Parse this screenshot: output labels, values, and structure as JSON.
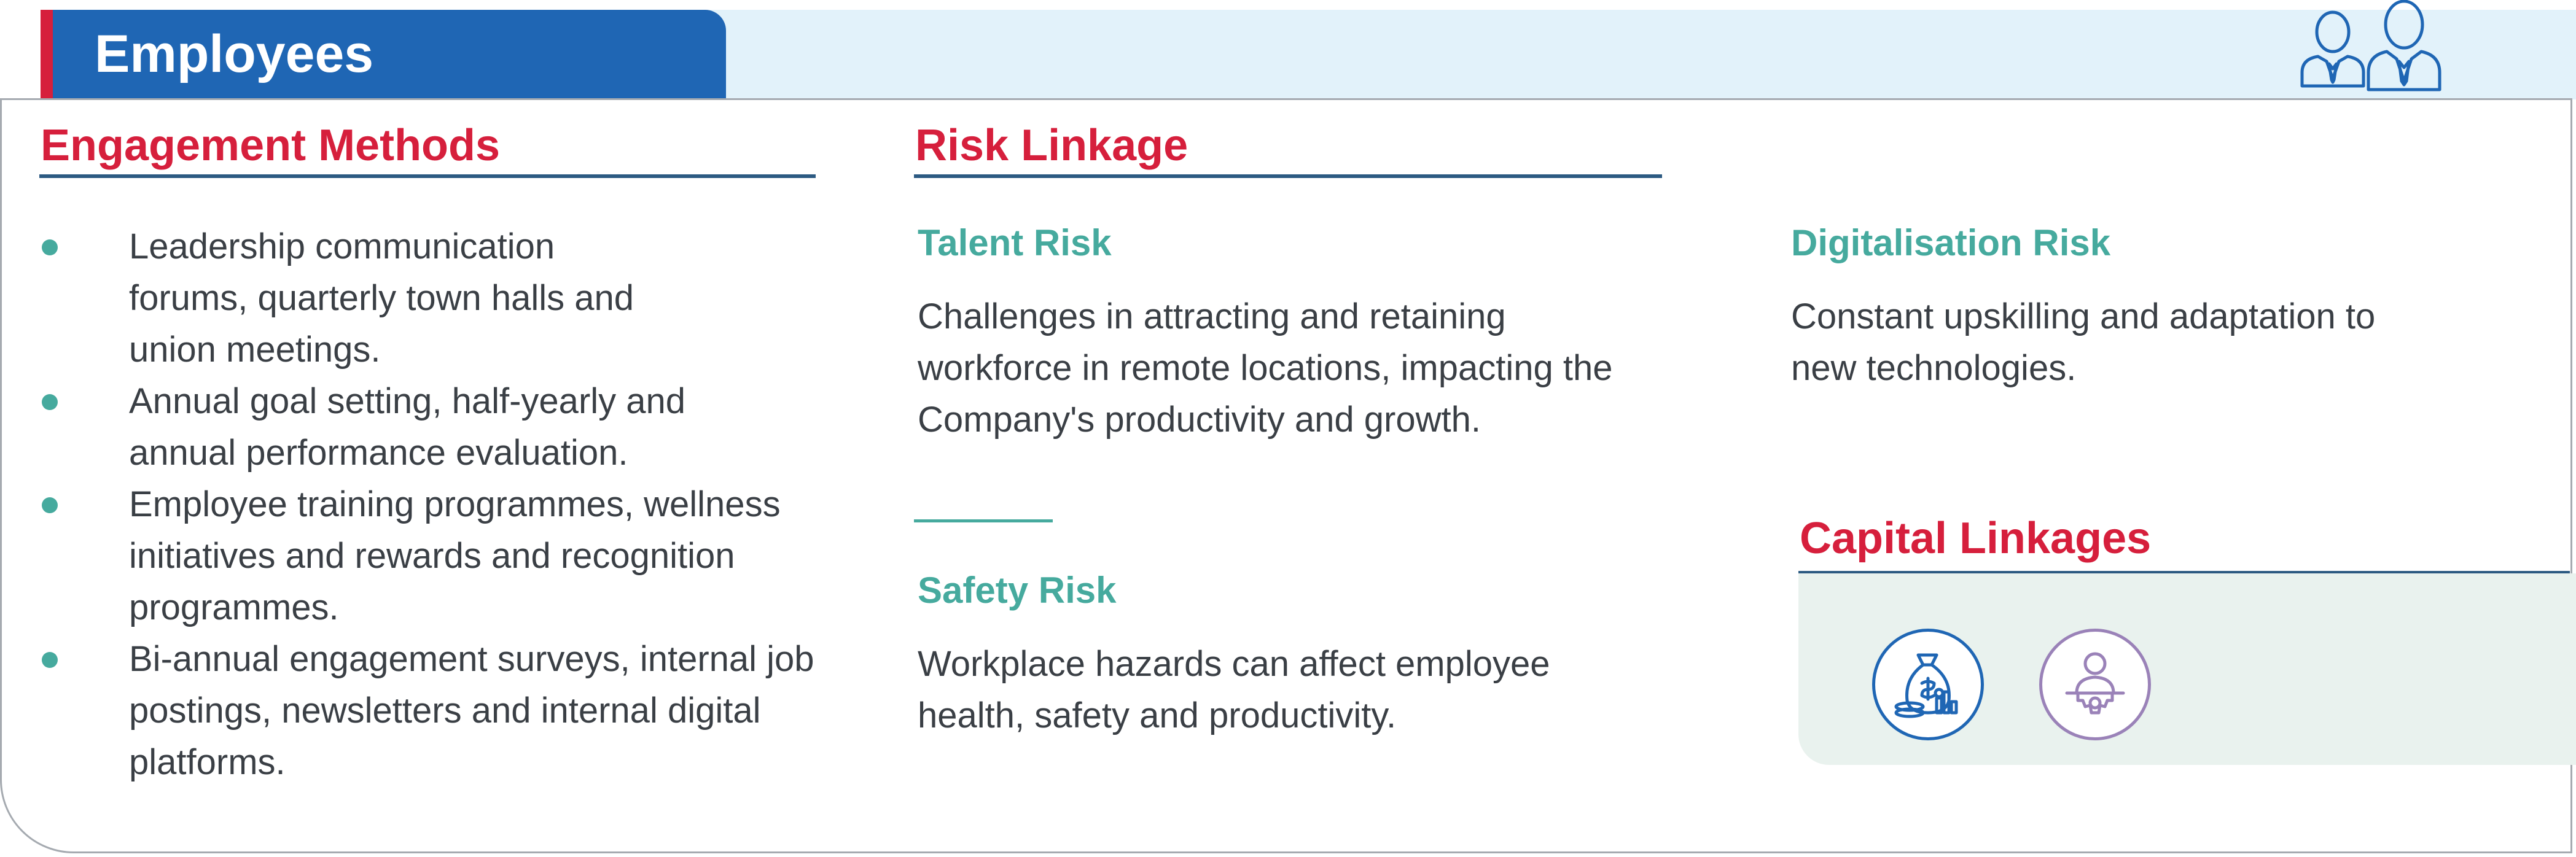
{
  "header": {
    "title": "Employees",
    "icon": "people-icon"
  },
  "engagement": {
    "heading": "Engagement Methods",
    "items": [
      "Leadership communication forums, quarterly town halls and union meetings.",
      "Annual goal setting, half-yearly and annual performance evaluation.",
      "Employee training programmes, wellness initiatives and rewards and recognition programmes.",
      "Bi-annual engagement surveys, internal job postings, newsletters and internal digital platforms."
    ]
  },
  "risk": {
    "heading": "Risk Linkage",
    "talent": {
      "title": "Talent Risk",
      "text": "Challenges in attracting and retaining workforce in remote locations, impacting the Company's productivity and growth."
    },
    "safety": {
      "title": "Safety Risk",
      "text": "Workplace hazards can affect employee health, safety and productivity."
    },
    "digital": {
      "title": "Digitalisation Risk",
      "text": "Constant upskilling and adaptation to new technologies."
    }
  },
  "capital": {
    "heading": "Capital Linkages",
    "icons": [
      "financial-capital-icon",
      "human-capital-icon"
    ]
  },
  "colors": {
    "brand_blue": "#1f66b4",
    "accent_red": "#d61f3c",
    "teal": "#46aa9e",
    "navy_rule": "#2c5a82",
    "band_light": "#e2f2fa"
  }
}
